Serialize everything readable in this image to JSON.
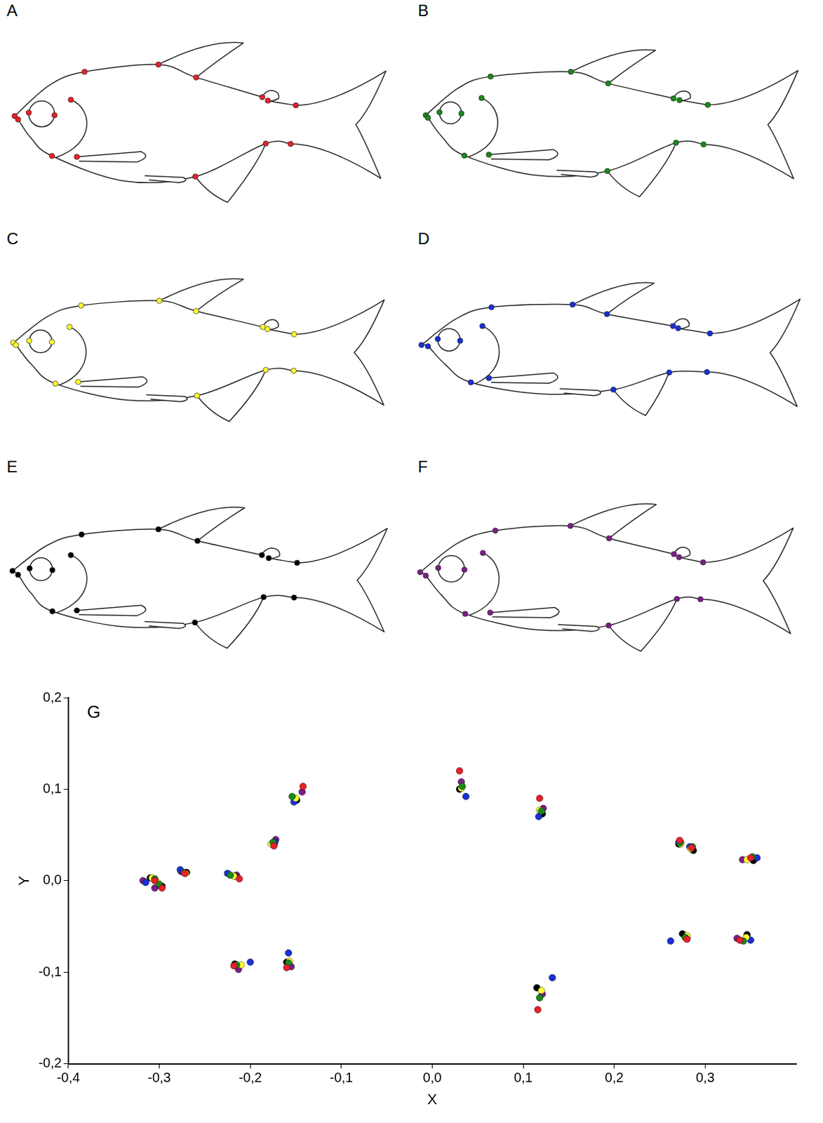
{
  "panels": {
    "labels": [
      "A",
      "B",
      "C",
      "D",
      "E",
      "F"
    ]
  },
  "chart_data": {
    "type": "scatter",
    "panel": "G",
    "x_label": "X",
    "y_label": "Y",
    "xlim": [
      -0.4,
      0.4
    ],
    "ylim": [
      -0.2,
      0.2
    ],
    "xticks": [
      {
        "value": -0.4,
        "label": "-0,4"
      },
      {
        "value": -0.3,
        "label": "-0,3"
      },
      {
        "value": -0.2,
        "label": "-0,2"
      },
      {
        "value": -0.1,
        "label": "-0,1"
      },
      {
        "value": 0,
        "label": "0,0"
      },
      {
        "value": 0.1,
        "label": "0,1"
      },
      {
        "value": 0.2,
        "label": "0,2"
      },
      {
        "value": 0.3,
        "label": "0,3"
      }
    ],
    "yticks": [
      {
        "value": -0.2,
        "label": "-0,2"
      },
      {
        "value": -0.1,
        "label": "-0,1"
      },
      {
        "value": 0,
        "label": "0,0"
      },
      {
        "value": 0.1,
        "label": "0,1"
      },
      {
        "value": 0.2,
        "label": "0,2"
      }
    ],
    "grid": false,
    "series": [
      {
        "color": "#e8202a",
        "marker": "circle",
        "x": [
          -0.305,
          -0.297,
          -0.272,
          -0.212,
          -0.174,
          -0.142,
          0.03,
          0.118,
          0.272,
          0.285,
          0.35,
          0.338,
          0.28,
          0.116,
          -0.16,
          -0.218
        ],
        "y": [
          0.0,
          -0.008,
          0.008,
          0.002,
          0.038,
          0.103,
          0.12,
          0.09,
          0.044,
          0.036,
          0.025,
          -0.065,
          -0.064,
          -0.141,
          -0.095,
          -0.093
        ]
      },
      {
        "color": "#1a8a1a",
        "marker": "circle",
        "x": [
          -0.305,
          -0.3,
          -0.273,
          -0.222,
          -0.175,
          -0.154,
          0.033,
          0.12,
          0.272,
          0.286,
          0.352,
          0.342,
          0.278,
          0.118,
          -0.158,
          -0.215
        ],
        "y": [
          0.002,
          -0.004,
          0.009,
          0.006,
          0.042,
          0.092,
          0.103,
          0.076,
          0.041,
          0.037,
          0.026,
          -0.066,
          -0.062,
          -0.128,
          -0.09,
          -0.092
        ]
      },
      {
        "color": "#ffff33",
        "marker": "circle",
        "x": [
          -0.308,
          -0.302,
          -0.271,
          -0.218,
          -0.177,
          -0.15,
          0.032,
          0.118,
          0.273,
          0.284,
          0.346,
          0.345,
          0.28,
          0.12,
          -0.157,
          -0.21
        ],
        "y": [
          0.003,
          -0.002,
          0.008,
          0.005,
          0.04,
          0.09,
          0.101,
          0.077,
          0.04,
          0.035,
          0.023,
          -0.062,
          -0.06,
          -0.12,
          -0.088,
          -0.092
        ]
      },
      {
        "color": "#1a2fd6",
        "marker": "circle",
        "x": [
          -0.315,
          -0.3,
          -0.277,
          -0.225,
          -0.173,
          -0.152,
          0.037,
          0.117,
          0.271,
          0.283,
          0.357,
          0.35,
          0.262,
          0.132,
          -0.158,
          -0.2
        ],
        "y": [
          -0.002,
          -0.005,
          0.012,
          0.008,
          0.042,
          0.086,
          0.092,
          0.07,
          0.042,
          0.037,
          0.025,
          -0.065,
          -0.066,
          -0.106,
          -0.079,
          -0.089
        ]
      },
      {
        "color": "#000000",
        "marker": "circle",
        "x": [
          -0.31,
          -0.297,
          -0.27,
          -0.217,
          -0.174,
          -0.149,
          0.03,
          0.121,
          0.271,
          0.287,
          0.353,
          0.346,
          0.275,
          0.115,
          -0.16,
          -0.217
        ],
        "y": [
          0.003,
          -0.006,
          0.009,
          0.005,
          0.04,
          0.088,
          0.1,
          0.073,
          0.04,
          0.033,
          0.022,
          -0.059,
          -0.058,
          -0.117,
          -0.089,
          -0.091
        ]
      },
      {
        "color": "#7b1f86",
        "marker": "circle",
        "x": [
          -0.318,
          -0.305,
          -0.276,
          -0.215,
          -0.172,
          -0.143,
          0.032,
          0.122,
          0.273,
          0.285,
          0.341,
          0.335,
          0.28,
          0.121,
          -0.155,
          -0.213
        ],
        "y": [
          0.0,
          -0.008,
          0.01,
          0.006,
          0.045,
          0.097,
          0.108,
          0.079,
          0.042,
          0.035,
          0.023,
          -0.063,
          -0.062,
          -0.124,
          -0.094,
          -0.097
        ]
      }
    ]
  }
}
